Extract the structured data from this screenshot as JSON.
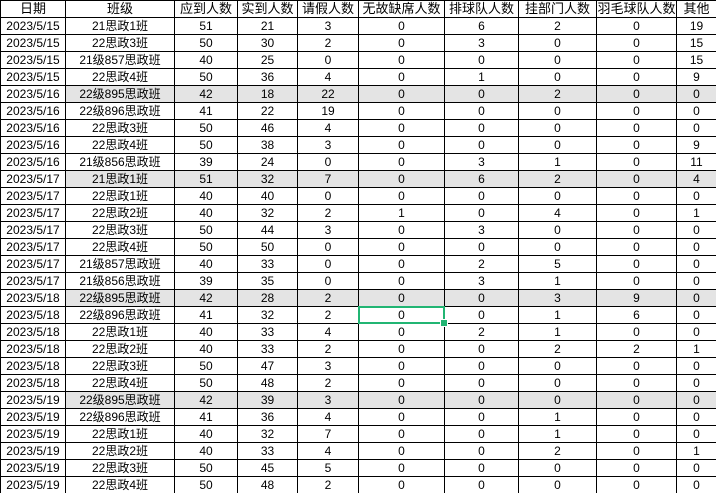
{
  "colors": {
    "selection_green": "#21b573",
    "row_shade": "#e4e4e4",
    "grid_line": "#000000",
    "background": "#ffffff",
    "text": "#000000"
  },
  "table": {
    "columns": [
      "日期",
      "班级",
      "应到人数",
      "实到人数",
      "请假人数",
      "无故缺席人数",
      "排球队人数",
      "挂部门人数",
      "羽毛球队人数",
      "其他"
    ],
    "rows": [
      [
        "2023/5/15",
        "21思政1班",
        51,
        21,
        3,
        0,
        6,
        2,
        0,
        19
      ],
      [
        "2023/5/15",
        "22思政3班",
        50,
        30,
        2,
        0,
        3,
        0,
        0,
        15
      ],
      [
        "2023/5/15",
        "21级857思政班",
        40,
        25,
        0,
        0,
        0,
        0,
        0,
        15
      ],
      [
        "2023/5/15",
        "22思政4班",
        50,
        36,
        4,
        0,
        1,
        0,
        0,
        9
      ],
      [
        "2023/5/16",
        "22级895思政班",
        42,
        18,
        22,
        0,
        0,
        2,
        0,
        0
      ],
      [
        "2023/5/16",
        "22级896思政班",
        41,
        22,
        19,
        0,
        0,
        0,
        0,
        0
      ],
      [
        "2023/5/16",
        "22思政3班",
        50,
        46,
        4,
        0,
        0,
        0,
        0,
        0
      ],
      [
        "2023/5/16",
        "22思政4班",
        50,
        38,
        3,
        0,
        0,
        0,
        0,
        9
      ],
      [
        "2023/5/16",
        "21级856思政班",
        39,
        24,
        0,
        0,
        3,
        1,
        0,
        11
      ],
      [
        "2023/5/17",
        "21思政1班",
        51,
        32,
        7,
        0,
        6,
        2,
        0,
        4
      ],
      [
        "2023/5/17",
        "22思政1班",
        40,
        40,
        0,
        0,
        0,
        0,
        0,
        0
      ],
      [
        "2023/5/17",
        "22思政2班",
        40,
        32,
        2,
        1,
        0,
        4,
        0,
        1
      ],
      [
        "2023/5/17",
        "22思政3班",
        50,
        44,
        3,
        0,
        3,
        0,
        0,
        0
      ],
      [
        "2023/5/17",
        "22思政4班",
        50,
        50,
        0,
        0,
        0,
        0,
        0,
        0
      ],
      [
        "2023/5/17",
        "21级857思政班",
        40,
        33,
        0,
        0,
        2,
        5,
        0,
        0
      ],
      [
        "2023/5/17",
        "21级856思政班",
        39,
        35,
        0,
        0,
        3,
        1,
        0,
        0
      ],
      [
        "2023/5/18",
        "22级895思政班",
        42,
        28,
        2,
        0,
        0,
        3,
        9,
        0
      ],
      [
        "2023/5/18",
        "22级896思政班",
        41,
        32,
        2,
        0,
        0,
        1,
        6,
        0
      ],
      [
        "2023/5/18",
        "22思政1班",
        40,
        33,
        4,
        0,
        2,
        1,
        0,
        0
      ],
      [
        "2023/5/18",
        "22思政2班",
        40,
        33,
        2,
        0,
        0,
        2,
        2,
        1
      ],
      [
        "2023/5/18",
        "22思政3班",
        50,
        47,
        3,
        0,
        0,
        0,
        0,
        0
      ],
      [
        "2023/5/18",
        "22思政4班",
        50,
        48,
        2,
        0,
        0,
        0,
        0,
        0
      ],
      [
        "2023/5/19",
        "22级895思政班",
        42,
        39,
        3,
        0,
        0,
        0,
        0,
        0
      ],
      [
        "2023/5/19",
        "22级896思政班",
        41,
        36,
        4,
        0,
        0,
        1,
        0,
        0
      ],
      [
        "2023/5/19",
        "22思政1班",
        40,
        32,
        7,
        0,
        0,
        1,
        0,
        0
      ],
      [
        "2023/5/19",
        "22思政2班",
        40,
        33,
        4,
        0,
        0,
        2,
        0,
        1
      ],
      [
        "2023/5/19",
        "22思政3班",
        50,
        45,
        5,
        0,
        0,
        0,
        0,
        0
      ],
      [
        "2023/5/19",
        "22思政4班",
        50,
        48,
        2,
        0,
        0,
        0,
        0,
        0
      ]
    ],
    "shaded_row_indexes": [
      4,
      9,
      16,
      22
    ],
    "selected_cell": {
      "row_index": 17,
      "col_index": 5,
      "value": 0
    }
  }
}
